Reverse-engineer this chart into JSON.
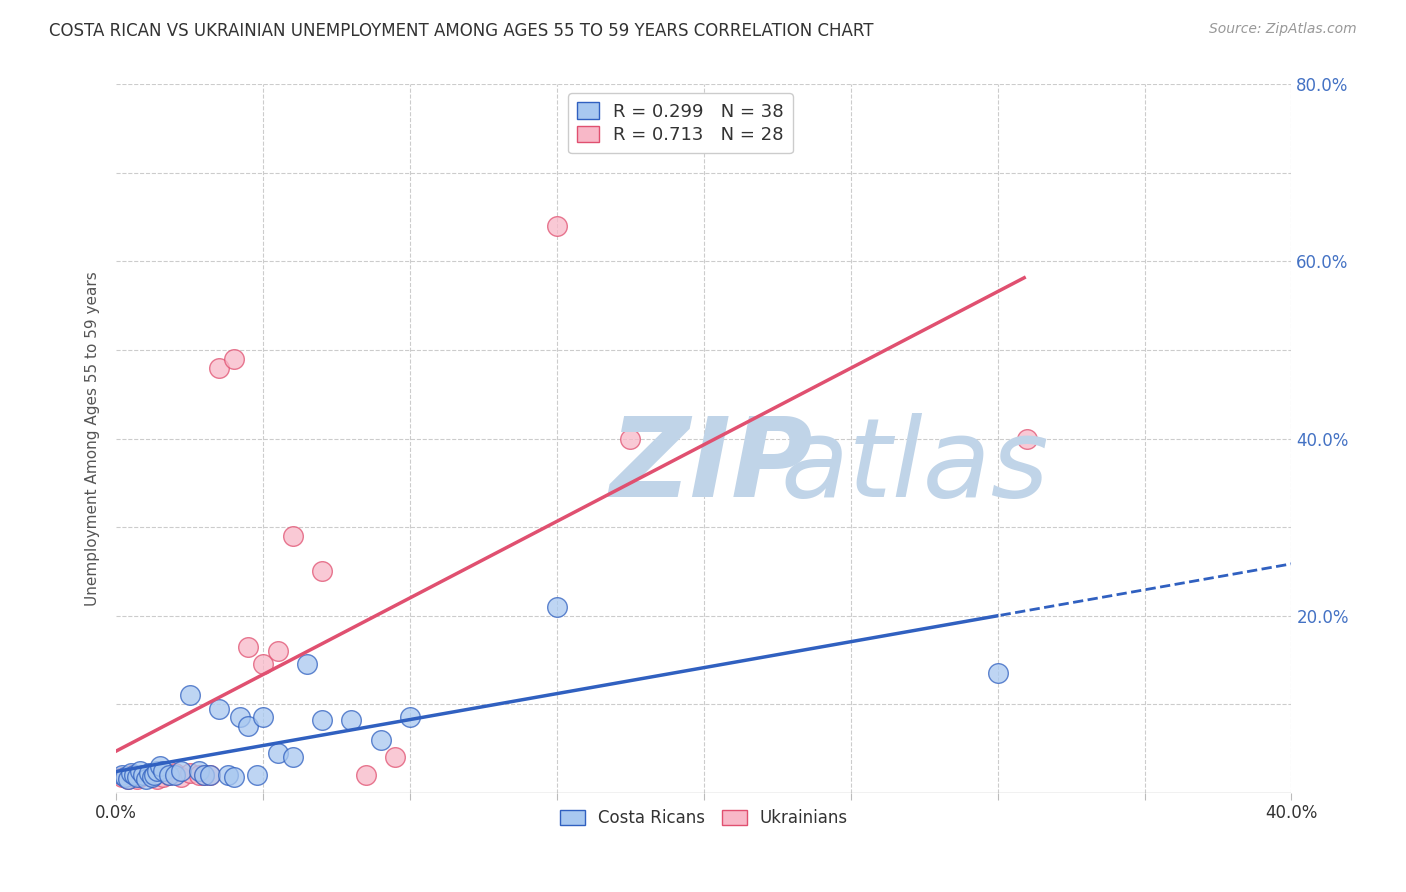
{
  "title": "COSTA RICAN VS UKRAINIAN UNEMPLOYMENT AMONG AGES 55 TO 59 YEARS CORRELATION CHART",
  "source": "Source: ZipAtlas.com",
  "ylabel": "Unemployment Among Ages 55 to 59 years",
  "xlim": [
    0.0,
    0.4
  ],
  "ylim": [
    0.0,
    0.8
  ],
  "xticks": [
    0.0,
    0.05,
    0.1,
    0.15,
    0.2,
    0.25,
    0.3,
    0.35,
    0.4
  ],
  "yticks": [
    0.0,
    0.1,
    0.2,
    0.3,
    0.4,
    0.5,
    0.6,
    0.7,
    0.8
  ],
  "xticklabels": [
    "0.0%",
    "",
    "",
    "",
    "",
    "",
    "",
    "",
    "40.0%"
  ],
  "yticklabels_right": [
    "",
    "",
    "20.0%",
    "",
    "40.0%",
    "",
    "60.0%",
    "",
    "80.0%"
  ],
  "costa_rica_R": 0.299,
  "costa_rica_N": 38,
  "ukraine_R": 0.713,
  "ukraine_N": 28,
  "costa_rica_color": "#a8c8f0",
  "ukraine_color": "#f8b8c8",
  "costa_rica_line_color": "#3060c0",
  "ukraine_line_color": "#e05070",
  "background_color": "#ffffff",
  "grid_color": "#cccccc",
  "watermark_zip_color": "#c0d4e8",
  "watermark_atlas_color": "#c0d4e8",
  "costa_ricans_x": [
    0.002,
    0.003,
    0.004,
    0.005,
    0.006,
    0.007,
    0.008,
    0.009,
    0.01,
    0.011,
    0.012,
    0.013,
    0.014,
    0.015,
    0.016,
    0.018,
    0.02,
    0.022,
    0.025,
    0.028,
    0.03,
    0.032,
    0.035,
    0.038,
    0.04,
    0.042,
    0.045,
    0.048,
    0.05,
    0.055,
    0.06,
    0.065,
    0.07,
    0.08,
    0.09,
    0.1,
    0.15,
    0.3
  ],
  "costa_ricans_y": [
    0.02,
    0.018,
    0.015,
    0.022,
    0.02,
    0.018,
    0.025,
    0.02,
    0.015,
    0.022,
    0.018,
    0.02,
    0.025,
    0.03,
    0.025,
    0.02,
    0.02,
    0.025,
    0.11,
    0.025,
    0.02,
    0.02,
    0.095,
    0.02,
    0.018,
    0.085,
    0.075,
    0.02,
    0.085,
    0.045,
    0.04,
    0.145,
    0.082,
    0.082,
    0.06,
    0.085,
    0.21,
    0.135
  ],
  "ukrainians_x": [
    0.002,
    0.004,
    0.005,
    0.007,
    0.008,
    0.01,
    0.012,
    0.014,
    0.016,
    0.018,
    0.02,
    0.022,
    0.025,
    0.028,
    0.03,
    0.032,
    0.035,
    0.04,
    0.045,
    0.05,
    0.055,
    0.06,
    0.07,
    0.085,
    0.095,
    0.15,
    0.175,
    0.31
  ],
  "ukrainians_y": [
    0.018,
    0.015,
    0.02,
    0.015,
    0.018,
    0.02,
    0.018,
    0.015,
    0.018,
    0.02,
    0.022,
    0.018,
    0.022,
    0.02,
    0.02,
    0.02,
    0.48,
    0.49,
    0.165,
    0.145,
    0.16,
    0.29,
    0.25,
    0.02,
    0.04,
    0.64,
    0.4,
    0.4
  ]
}
